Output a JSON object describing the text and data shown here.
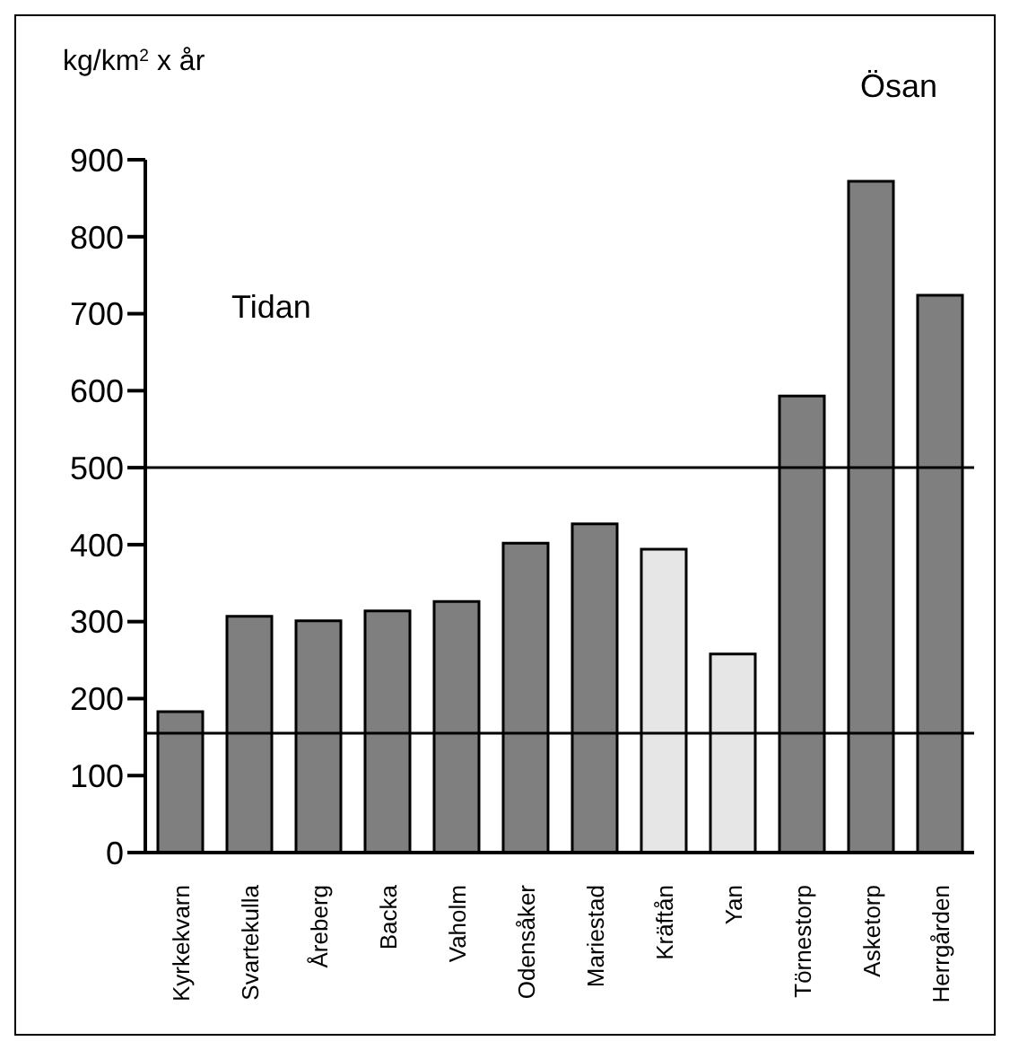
{
  "chart_data": {
    "type": "bar",
    "ylabel": "kg/km$^{2}$ x år",
    "categories": [
      "Kyrkekvarn",
      "Svartekulla",
      "Åreberg",
      "Backa",
      "Vaholm",
      "Odensåker",
      "Mariestad",
      "Kräftån",
      "Yan",
      "Törnestorp",
      "Asketorp",
      "Herrgården"
    ],
    "values": [
      183,
      307,
      301,
      314,
      326,
      402,
      427,
      394,
      258,
      593,
      872,
      724
    ],
    "colors": [
      "#7f7f7f",
      "#7f7f7f",
      "#7f7f7f",
      "#7f7f7f",
      "#7f7f7f",
      "#7f7f7f",
      "#7f7f7f",
      "#e6e6e6",
      "#e6e6e6",
      "#7f7f7f",
      "#7f7f7f",
      "#7f7f7f"
    ],
    "ylim": [
      0,
      900
    ],
    "yticks": [
      0,
      100,
      200,
      300,
      400,
      500,
      600,
      700,
      800,
      900
    ],
    "ref_lines": [
      {
        "axis": "y",
        "value": 500,
        "color": "#000000"
      },
      {
        "axis": "y",
        "value": 155,
        "color": "#000000"
      }
    ],
    "annotations": [
      "Tidan",
      "Ösan"
    ],
    "grid": false,
    "legend": false
  }
}
